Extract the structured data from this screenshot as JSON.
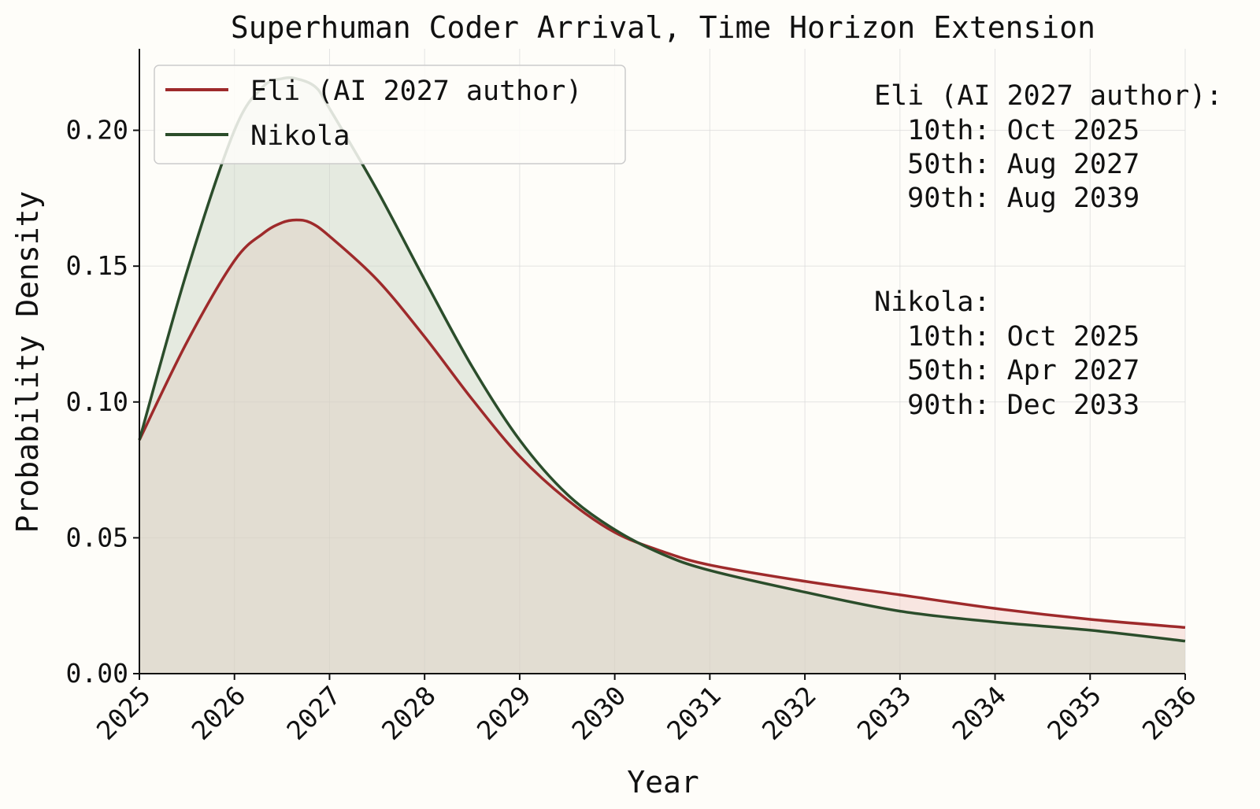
{
  "chart_data": {
    "type": "line",
    "title": "Superhuman Coder Arrival, Time Horizon Extension",
    "xlabel": "Year",
    "ylabel": "Probability Density",
    "xlim": [
      2025,
      2036
    ],
    "ylim": [
      0,
      0.23
    ],
    "xticks": [
      2025,
      2026,
      2027,
      2028,
      2029,
      2030,
      2031,
      2032,
      2033,
      2034,
      2035,
      2036
    ],
    "xtick_labels": [
      "2025",
      "2026",
      "2027",
      "2028",
      "2029",
      "2030",
      "2031",
      "2032",
      "2033",
      "2034",
      "2035",
      "2036"
    ],
    "yticks": [
      0.0,
      0.05,
      0.1,
      0.15,
      0.2
    ],
    "ytick_labels": [
      "0.00",
      "0.05",
      "0.10",
      "0.15",
      "0.20"
    ],
    "grid": true,
    "legend_position": "top-left",
    "series": [
      {
        "name": "Eli (AI 2027 author)",
        "color": "#9e2a2b",
        "fill": "#f1c9c3",
        "x": [
          2025.0,
          2025.5,
          2026.0,
          2026.3,
          2026.5,
          2026.65,
          2026.8,
          2027.0,
          2027.5,
          2028.0,
          2028.5,
          2029.0,
          2029.5,
          2030.0,
          2030.5,
          2031.0,
          2032.0,
          2033.0,
          2034.0,
          2035.0,
          2036.0
        ],
        "y": [
          0.086,
          0.122,
          0.152,
          0.162,
          0.166,
          0.167,
          0.166,
          0.161,
          0.145,
          0.124,
          0.101,
          0.08,
          0.064,
          0.052,
          0.045,
          0.04,
          0.034,
          0.029,
          0.024,
          0.02,
          0.017
        ]
      },
      {
        "name": "Nikola",
        "color": "#2b4d2b",
        "fill": "#c8d3c2",
        "x": [
          2025.0,
          2025.5,
          2026.0,
          2026.3,
          2026.5,
          2026.65,
          2026.85,
          2027.0,
          2027.5,
          2028.0,
          2028.5,
          2029.0,
          2029.5,
          2030.0,
          2030.5,
          2031.0,
          2032.0,
          2033.0,
          2034.0,
          2035.0,
          2036.0
        ],
        "y": [
          0.086,
          0.148,
          0.2,
          0.216,
          0.219,
          0.219,
          0.216,
          0.208,
          0.178,
          0.145,
          0.113,
          0.086,
          0.066,
          0.053,
          0.044,
          0.038,
          0.03,
          0.023,
          0.019,
          0.016,
          0.012
        ]
      }
    ],
    "annotations": [
      {
        "lines": [
          "Eli (AI 2027 author):",
          "  10th: Oct 2025",
          "  50th: Aug 2027",
          "  90th: Aug 2039"
        ]
      },
      {
        "lines": [
          "Nikola:",
          "  10th: Oct 2025",
          "  50th: Apr 2027",
          "  90th: Dec 2033"
        ]
      }
    ]
  }
}
